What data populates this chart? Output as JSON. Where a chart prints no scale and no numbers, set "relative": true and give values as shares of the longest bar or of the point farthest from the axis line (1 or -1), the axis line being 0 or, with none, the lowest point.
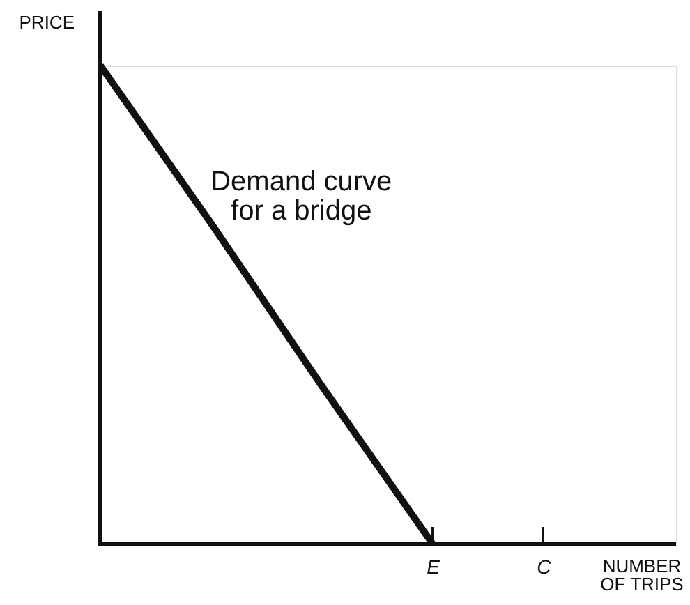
{
  "chart_data": {
    "type": "line",
    "relative": true,
    "categories": [
      null,
      null,
      null,
      "E",
      "C"
    ],
    "series": [
      {
        "name": "Demand curve for a bridge",
        "color": "#111111",
        "values": [
          1,
          0.67,
          0.33,
          0,
          null
        ]
      }
    ],
    "xlabel": "NUMBER OF TRIPS",
    "ylabel": "PRICE"
  }
}
